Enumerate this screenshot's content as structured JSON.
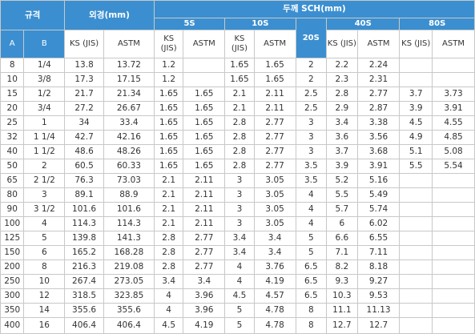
{
  "header": {
    "spec": "규격",
    "outer_diameter": "외경(mm)",
    "thickness_sch": "두께 SCH(mm)",
    "a": "A",
    "b": "B",
    "schedules": [
      "5S",
      "10S",
      "20S",
      "40S",
      "80S"
    ],
    "ks_jis": "KS (JIS)",
    "astm": "ASTM"
  },
  "columns": [
    "A",
    "B",
    "OD_KS",
    "OD_ASTM",
    "5S_KS",
    "5S_ASTM",
    "10S_KS",
    "10S_ASTM",
    "20S",
    "40S_KS",
    "40S_ASTM",
    "80S_KS",
    "80S_ASTM"
  ],
  "rows": [
    [
      "8",
      "1/4",
      "13.8",
      "13.72",
      "1.2",
      "",
      "1.65",
      "1.65",
      "2",
      "2.2",
      "2.24",
      "",
      ""
    ],
    [
      "10",
      "3/8",
      "17.3",
      "17.15",
      "1.2",
      "",
      "1.65",
      "1.65",
      "2",
      "2.3",
      "2.31",
      "",
      ""
    ],
    [
      "15",
      "1/2",
      "21.7",
      "21.34",
      "1.65",
      "1.65",
      "2.1",
      "2.11",
      "2.5",
      "2.8",
      "2.77",
      "3.7",
      "3.73"
    ],
    [
      "20",
      "3/4",
      "27.2",
      "26.67",
      "1.65",
      "1.65",
      "2.1",
      "2.11",
      "2.5",
      "2.9",
      "2.87",
      "3.9",
      "3.91"
    ],
    [
      "25",
      "1",
      "34",
      "33.4",
      "1.65",
      "1.65",
      "2.8",
      "2.77",
      "3",
      "3.4",
      "3.38",
      "4.5",
      "4.55"
    ],
    [
      "32",
      "1 1/4",
      "42.7",
      "42.16",
      "1.65",
      "1.65",
      "2.8",
      "2.77",
      "3",
      "3.6",
      "3.56",
      "4.9",
      "4.85"
    ],
    [
      "40",
      "1 1/2",
      "48.6",
      "48.26",
      "1.65",
      "1.65",
      "2.8",
      "2.77",
      "3",
      "3.7",
      "3.68",
      "5.1",
      "5.08"
    ],
    [
      "50",
      "2",
      "60.5",
      "60.33",
      "1.65",
      "1.65",
      "2.8",
      "2.77",
      "3.5",
      "3.9",
      "3.91",
      "5.5",
      "5.54"
    ],
    [
      "65",
      "2 1/2",
      "76.3",
      "73.03",
      "2.1",
      "2.11",
      "3",
      "3.05",
      "3.5",
      "5.2",
      "5.16",
      "",
      ""
    ],
    [
      "80",
      "3",
      "89.1",
      "88.9",
      "2.1",
      "2.11",
      "3",
      "3.05",
      "4",
      "5.5",
      "5.49",
      "",
      ""
    ],
    [
      "90",
      "3 1/2",
      "101.6",
      "101.6",
      "2.1",
      "2.11",
      "3",
      "3.05",
      "4",
      "5.7",
      "5.74",
      "",
      ""
    ],
    [
      "100",
      "4",
      "114.3",
      "114.3",
      "2.1",
      "2.11",
      "3",
      "3.05",
      "4",
      "6",
      "6.02",
      "",
      ""
    ],
    [
      "125",
      "5",
      "139.8",
      "141.3",
      "2.8",
      "2.77",
      "3.4",
      "3.4",
      "5",
      "6.6",
      "6.55",
      "",
      ""
    ],
    [
      "150",
      "6",
      "165.2",
      "168.28",
      "2.8",
      "2.77",
      "3.4",
      "3.4",
      "5",
      "7.1",
      "7.11",
      "",
      ""
    ],
    [
      "200",
      "8",
      "216.3",
      "219.08",
      "2.8",
      "2.77",
      "4",
      "3.76",
      "6.5",
      "8.2",
      "8.18",
      "",
      ""
    ],
    [
      "250",
      "10",
      "267.4",
      "273.05",
      "3.4",
      "3.4",
      "4",
      "4.19",
      "6.5",
      "9.3",
      "9.27",
      "",
      ""
    ],
    [
      "300",
      "12",
      "318.5",
      "323.85",
      "4",
      "3.96",
      "4.5",
      "4.57",
      "6.5",
      "10.3",
      "9.53",
      "",
      ""
    ],
    [
      "350",
      "14",
      "355.6",
      "355.6",
      "4",
      "3.96",
      "5",
      "4.78",
      "8",
      "11.1",
      "11.13",
      "",
      ""
    ],
    [
      "400",
      "16",
      "406.4",
      "406.4",
      "4.5",
      "4.19",
      "5",
      "4.78",
      "8",
      "12.7",
      "12.7",
      "",
      ""
    ]
  ]
}
